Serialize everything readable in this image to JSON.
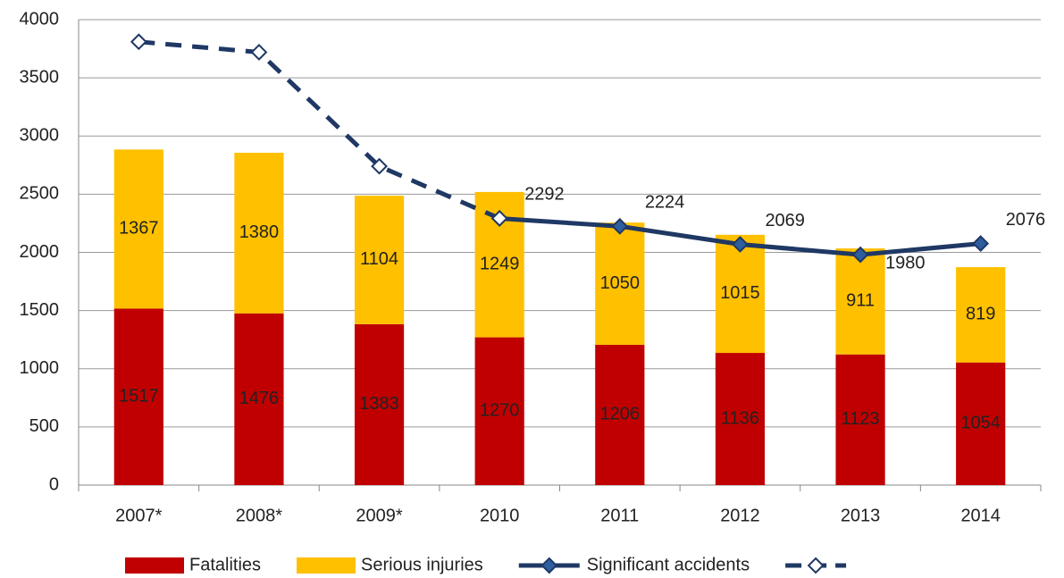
{
  "chart_data": {
    "type": "bar",
    "stacked": true,
    "categories": [
      "2007*",
      "2008*",
      "2009*",
      "2010",
      "2011",
      "2012",
      "2013",
      "2014"
    ],
    "series": [
      {
        "name": "Fatalities",
        "color": "#c00000",
        "values": [
          1517,
          1476,
          1383,
          1270,
          1206,
          1136,
          1123,
          1054
        ]
      },
      {
        "name": "Serious injuries",
        "color": "#ffc000",
        "values": [
          1367,
          1380,
          1104,
          1249,
          1050,
          1015,
          911,
          819
        ]
      }
    ],
    "lines": [
      {
        "name": "Significant accidents",
        "color": "#1f3864",
        "marker": "diamond",
        "values": [
          null,
          null,
          null,
          2292,
          2224,
          2069,
          1980,
          2076
        ]
      },
      {
        "color": "#1f3864",
        "marker": "hollow-diamond",
        "dashed": true,
        "values": [
          3810,
          3720,
          2740,
          2292,
          null,
          null,
          null,
          null
        ]
      }
    ],
    "ylim": [
      0,
      4000
    ],
    "yticks": [
      0,
      500,
      1000,
      1500,
      2000,
      2500,
      3000,
      3500,
      4000
    ],
    "grid": true,
    "legend": "bottom"
  }
}
